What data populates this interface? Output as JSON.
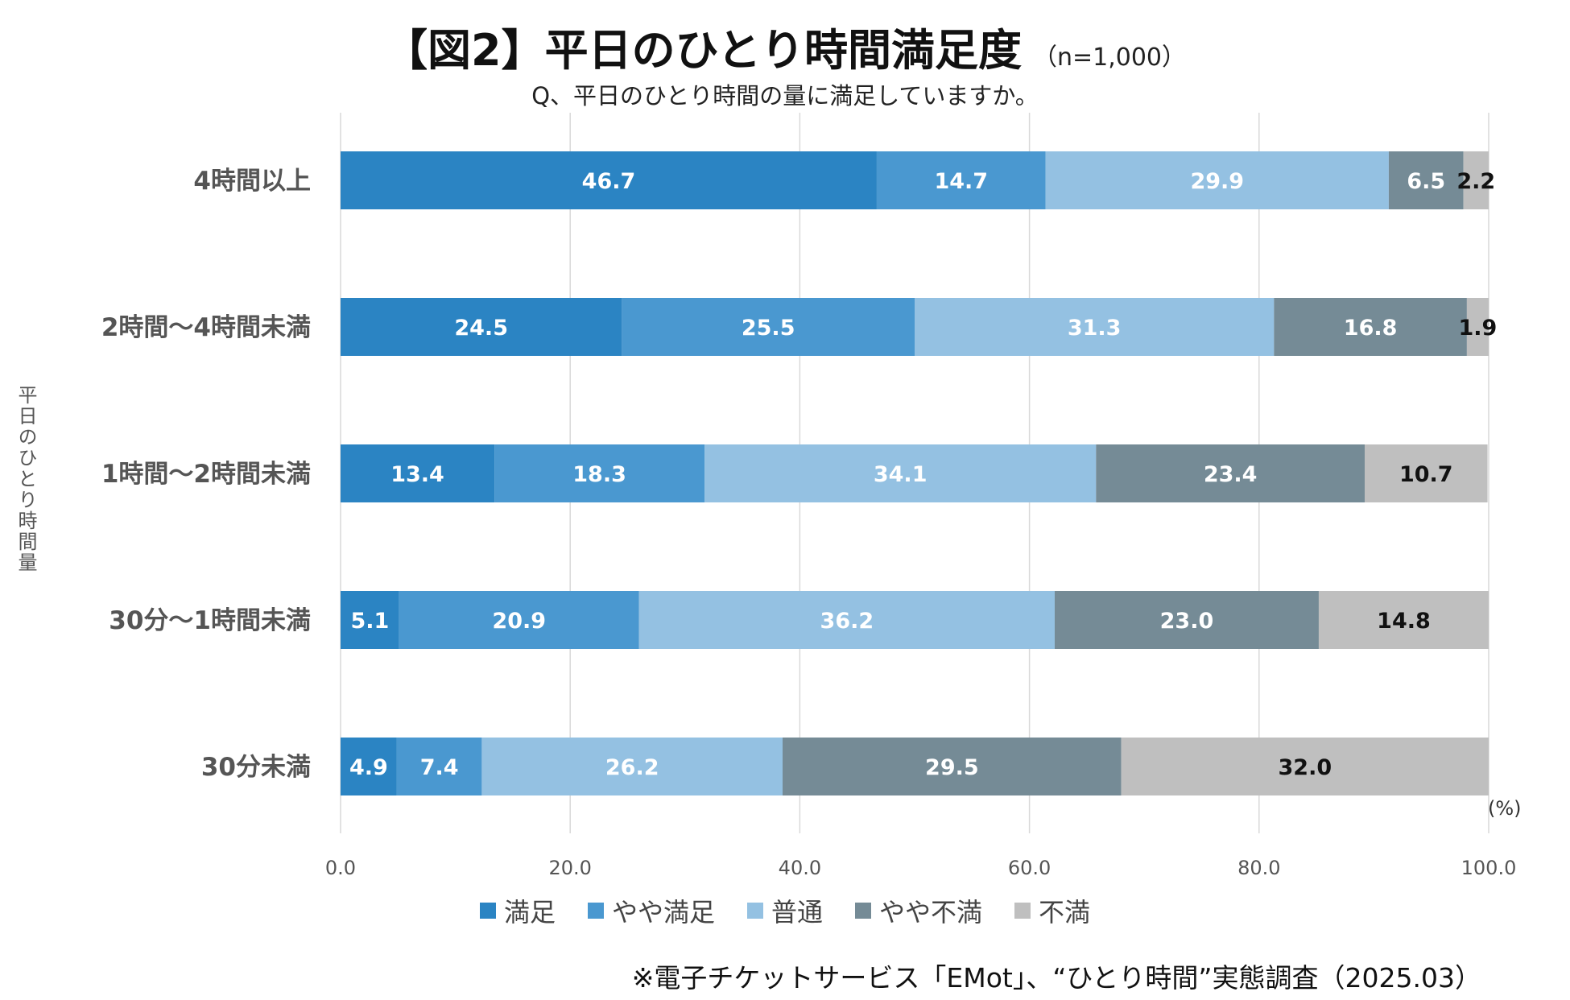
{
  "chart_data": {
    "type": "bar",
    "orientation": "horizontal",
    "stacked": true,
    "title": "【図2】平日のひとり時間満足度",
    "sample_size": "（n=1,000）",
    "subtitle": "Q、平日のひとり時間の量に満足していますか。",
    "ylabel": "平日のひとり時間量",
    "x_unit": "(%)",
    "xlim": [
      0,
      100
    ],
    "x_ticks": [
      "0.0",
      "20.0",
      "40.0",
      "60.0",
      "80.0",
      "100.0"
    ],
    "categories": [
      "4時間以上",
      "2時間〜4時間未満",
      "1時間〜2時間未満",
      "30分〜1時間未満",
      "30分未満"
    ],
    "series": [
      {
        "name": "満足",
        "color": "#2b84c3",
        "label_color": "#ffffff",
        "values": [
          46.7,
          24.5,
          13.4,
          5.1,
          4.9
        ]
      },
      {
        "name": "やや満足",
        "color": "#4a98d0",
        "label_color": "#ffffff",
        "values": [
          14.7,
          25.5,
          18.3,
          20.9,
          7.4
        ]
      },
      {
        "name": "普通",
        "color": "#94c1e2",
        "label_color": "#ffffff",
        "values": [
          29.9,
          31.3,
          34.1,
          36.2,
          26.2
        ]
      },
      {
        "name": "やや不満",
        "color": "#758b96",
        "label_color": "#ffffff",
        "values": [
          6.5,
          16.8,
          23.4,
          23.0,
          29.5
        ]
      },
      {
        "name": "不満",
        "color": "#bfbfbf",
        "label_color": "#111111",
        "values": [
          2.2,
          1.9,
          10.7,
          14.8,
          32.0
        ]
      }
    ],
    "grid": true,
    "legend_position": "bottom"
  },
  "source": "※電子チケットサービス「EMot」、“ひとり時間”実態調査（2025.03）"
}
